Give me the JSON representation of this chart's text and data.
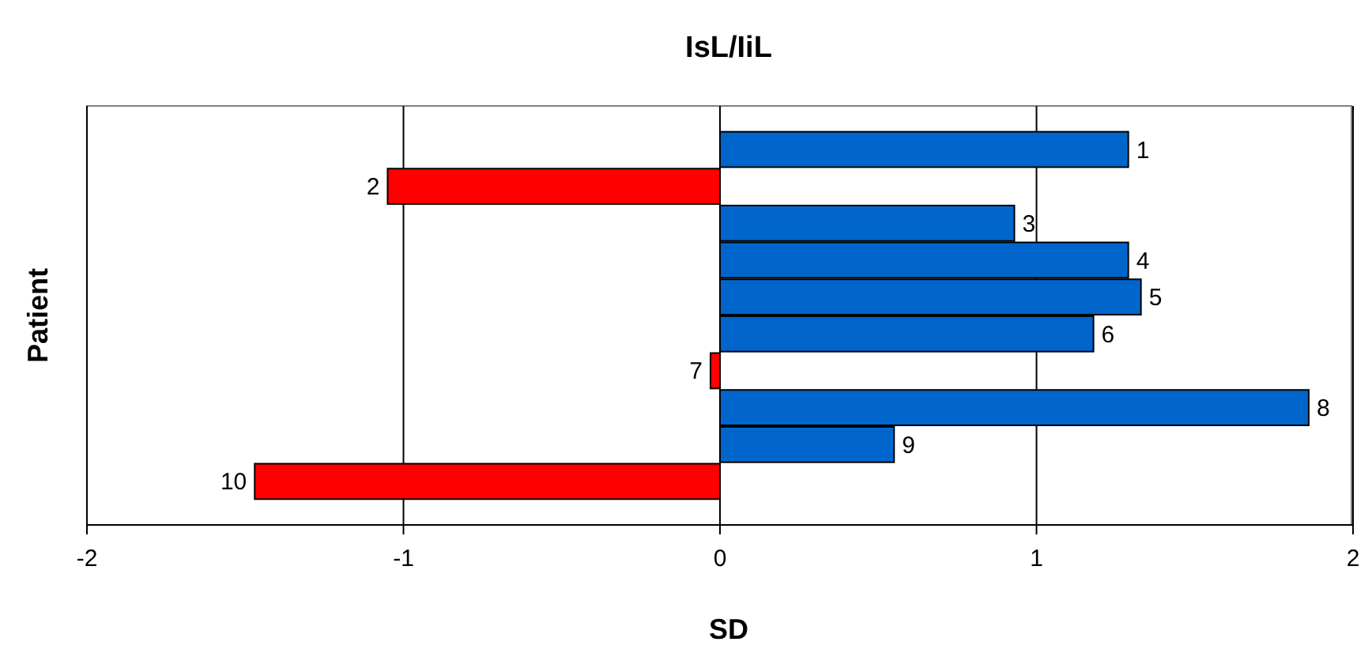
{
  "chart_data": {
    "type": "bar",
    "orientation": "horizontal",
    "title": "IsL/IiL",
    "xlabel": "SD",
    "ylabel": "Patient",
    "categories": [
      "1",
      "2",
      "3",
      "4",
      "5",
      "6",
      "7",
      "8",
      "9",
      "10"
    ],
    "values": [
      1.29,
      -1.05,
      0.93,
      1.29,
      1.33,
      1.18,
      -0.03,
      1.86,
      0.55,
      -1.47
    ],
    "colors": [
      "#0066cc",
      "#ff0000",
      "#0066cc",
      "#0066cc",
      "#0066cc",
      "#0066cc",
      "#ff0000",
      "#0066cc",
      "#0066cc",
      "#ff0000"
    ],
    "xlim": [
      -2,
      2
    ],
    "xticks": [
      -2,
      -1,
      0,
      1,
      2
    ],
    "grid": "x"
  }
}
